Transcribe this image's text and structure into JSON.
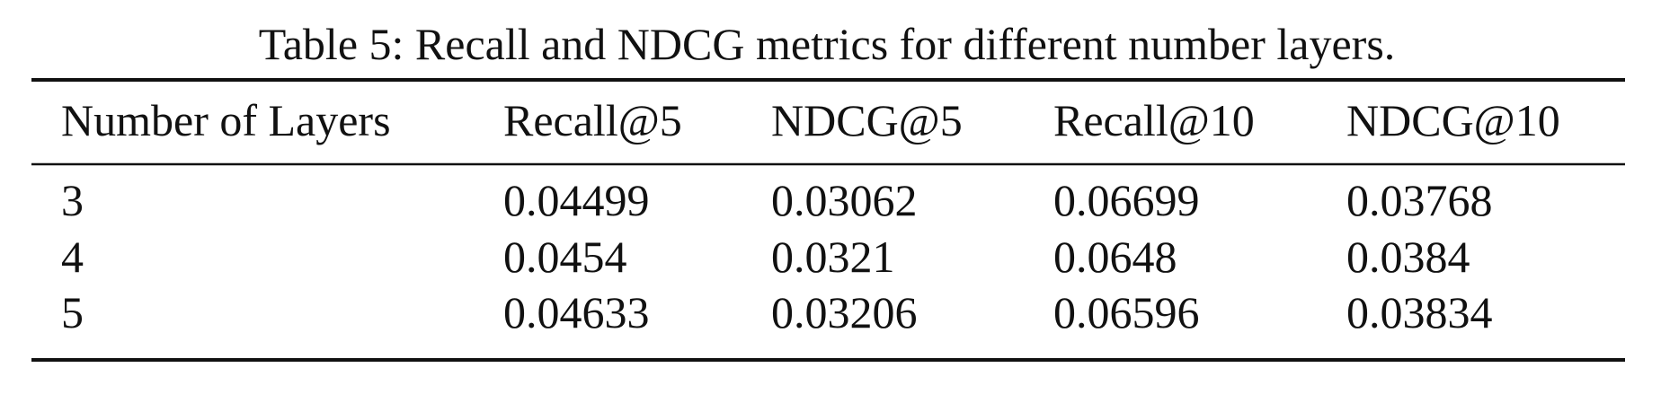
{
  "caption": "Table 5: Recall and NDCG metrics for different number layers.",
  "table": {
    "header": [
      "Number of Layers",
      "Recall@5",
      "NDCG@5",
      "Recall@10",
      "NDCG@10"
    ],
    "rows": [
      [
        "3",
        "0.04499",
        "0.03062",
        "0.06699",
        "0.03768"
      ],
      [
        "4",
        "0.0454",
        "0.0321",
        "0.0648",
        "0.0384"
      ],
      [
        "5",
        "0.04633",
        "0.03206",
        "0.06596",
        "0.03834"
      ]
    ]
  }
}
